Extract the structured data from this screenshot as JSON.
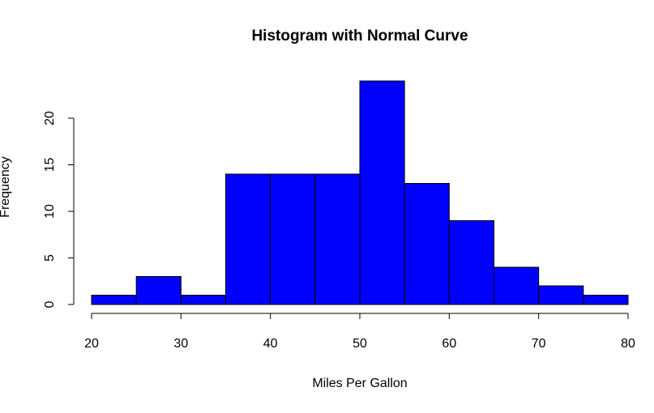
{
  "chart_data": {
    "type": "bar",
    "title": "Histogram with Normal Curve",
    "xlabel": "Miles Per Gallon",
    "ylabel": "Frequency",
    "bins": [
      {
        "start": 20,
        "end": 25,
        "count": 1
      },
      {
        "start": 25,
        "end": 30,
        "count": 3
      },
      {
        "start": 30,
        "end": 35,
        "count": 1
      },
      {
        "start": 35,
        "end": 40,
        "count": 14
      },
      {
        "start": 40,
        "end": 45,
        "count": 14
      },
      {
        "start": 45,
        "end": 50,
        "count": 14
      },
      {
        "start": 50,
        "end": 55,
        "count": 24
      },
      {
        "start": 55,
        "end": 60,
        "count": 13
      },
      {
        "start": 60,
        "end": 65,
        "count": 9
      },
      {
        "start": 65,
        "end": 70,
        "count": 4
      },
      {
        "start": 70,
        "end": 75,
        "count": 2
      },
      {
        "start": 75,
        "end": 80,
        "count": 1
      }
    ],
    "xlim": [
      20,
      80
    ],
    "ylim": [
      0,
      24
    ],
    "xticks": [
      "20",
      "30",
      "40",
      "50",
      "60",
      "70",
      "80"
    ],
    "yticks": [
      "0",
      "5",
      "10",
      "15",
      "20"
    ],
    "bar_color": "#0000ff",
    "bar_edge_color": "#000000",
    "grid": false,
    "legend": "none"
  }
}
